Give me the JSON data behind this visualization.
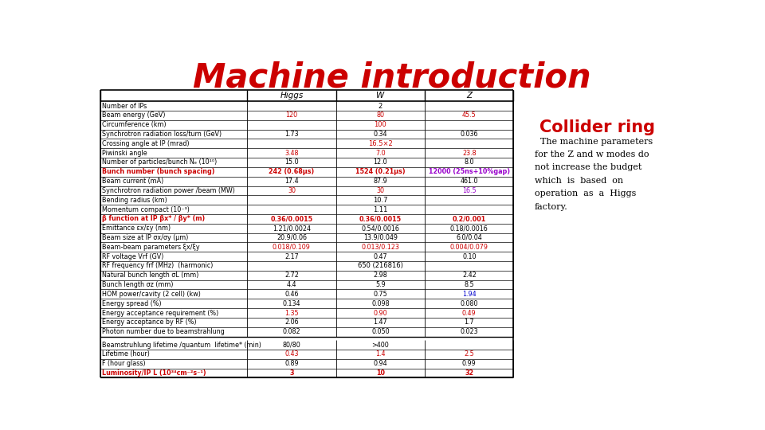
{
  "title": "Machine introduction",
  "title_color": "#cc0000",
  "collider_title": "Collider ring",
  "collider_color": "#cc0000",
  "collider_text": "  The machine parameters\nfor the Z and w modes do\nnot increase the budget\nwhich  is  based  on\noperation  as  a  Higgs\nfactory.",
  "headers": [
    "",
    "Higgs",
    "W",
    "Z"
  ],
  "rows": [
    {
      "label": "Number of IPs",
      "vals": [
        "2",
        "",
        ""
      ],
      "span": true,
      "bold": false,
      "lcolor": "black",
      "vcolors": [
        "black",
        "black",
        "black"
      ]
    },
    {
      "label": "Beam energy (GeV)",
      "vals": [
        "120",
        "80",
        "45.5"
      ],
      "span": false,
      "bold": false,
      "lcolor": "black",
      "vcolors": [
        "#cc0000",
        "#cc0000",
        "#cc0000"
      ]
    },
    {
      "label": "Circumference (km)",
      "vals": [
        "100",
        "",
        ""
      ],
      "span": true,
      "bold": false,
      "lcolor": "black",
      "vcolors": [
        "#cc0000",
        "#cc0000",
        "#cc0000"
      ]
    },
    {
      "label": "Synchrotron radiation loss/turn (GeV)",
      "vals": [
        "1.73",
        "0.34",
        "0.036"
      ],
      "span": false,
      "bold": false,
      "lcolor": "black",
      "vcolors": [
        "black",
        "black",
        "black"
      ]
    },
    {
      "label": "Crossing angle at IP (mrad)",
      "vals": [
        "16.5×2",
        "",
        ""
      ],
      "span": true,
      "bold": false,
      "lcolor": "black",
      "vcolors": [
        "#cc0000",
        "#cc0000",
        "#cc0000"
      ]
    },
    {
      "label": "Piwinski angle",
      "vals": [
        "3.48",
        "7.0",
        "23.8"
      ],
      "span": false,
      "bold": false,
      "lcolor": "black",
      "vcolors": [
        "#cc0000",
        "#cc0000",
        "#cc0000"
      ]
    },
    {
      "label": "Number of particles/bunch Nₑ (10¹⁰)",
      "vals": [
        "15.0",
        "12.0",
        "8.0"
      ],
      "span": false,
      "bold": false,
      "lcolor": "black",
      "vcolors": [
        "black",
        "black",
        "black"
      ]
    },
    {
      "label": "Bunch number (bunch spacing)",
      "vals": [
        "242 (0.68μs)",
        "1524 (0.21μs)",
        "12000 (25ns+10%gap)"
      ],
      "span": false,
      "bold": true,
      "lcolor": "#cc0000",
      "vcolors": [
        "#cc0000",
        "#cc0000",
        "#9900cc"
      ]
    },
    {
      "label": "Beam current (mA)",
      "vals": [
        "17.4",
        "87.9",
        "461.0"
      ],
      "span": false,
      "bold": false,
      "lcolor": "black",
      "vcolors": [
        "black",
        "black",
        "black"
      ]
    },
    {
      "label": "Synchrotron radiation power /beam (MW)",
      "vals": [
        "30",
        "30",
        "16.5"
      ],
      "span": false,
      "bold": false,
      "lcolor": "black",
      "vcolors": [
        "#cc0000",
        "#cc0000",
        "#9900cc"
      ]
    },
    {
      "label": "Bending radius (km)",
      "vals": [
        "10.7",
        "",
        ""
      ],
      "span": true,
      "bold": false,
      "lcolor": "black",
      "vcolors": [
        "black",
        "black",
        "black"
      ]
    },
    {
      "label": "Momentum compact (10⁻³)",
      "vals": [
        "1.11",
        "",
        ""
      ],
      "span": true,
      "bold": false,
      "lcolor": "black",
      "vcolors": [
        "black",
        "black",
        "black"
      ]
    },
    {
      "label": "β function at IP βx* / βy* (m)",
      "vals": [
        "0.36/0.0015",
        "0.36/0.0015",
        "0.2/0.001"
      ],
      "span": false,
      "bold": true,
      "lcolor": "#cc0000",
      "vcolors": [
        "#cc0000",
        "#cc0000",
        "#cc0000"
      ]
    },
    {
      "label": "Emittance εx/εy (nm)",
      "vals": [
        "1.21/0.0024",
        "0.54/0.0016",
        "0.18/0.0016"
      ],
      "span": false,
      "bold": false,
      "lcolor": "black",
      "vcolors": [
        "black",
        "black",
        "black"
      ]
    },
    {
      "label": "Beam size at IP σx/σy (μm)",
      "vals": [
        "20.9/0.06",
        "13.9/0.049",
        "6.0/0.04"
      ],
      "span": false,
      "bold": false,
      "lcolor": "black",
      "vcolors": [
        "black",
        "black",
        "black"
      ]
    },
    {
      "label": "Beam-beam parameters ξx/ξy",
      "vals": [
        "0.018/0.109",
        "0.013/0.123",
        "0.004/0.079"
      ],
      "span": false,
      "bold": false,
      "lcolor": "black",
      "vcolors": [
        "#cc0000",
        "#cc0000",
        "#cc0000"
      ]
    },
    {
      "label": "RF voltage Vrf (GV)",
      "vals": [
        "2.17",
        "0.47",
        "0.10"
      ],
      "span": false,
      "bold": false,
      "lcolor": "black",
      "vcolors": [
        "black",
        "black",
        "black"
      ]
    },
    {
      "label": "RF frequency frf (MHz)  (harmonic)",
      "vals": [
        "650 (216816)",
        "",
        ""
      ],
      "span": true,
      "bold": false,
      "lcolor": "black",
      "vcolors": [
        "black",
        "black",
        "black"
      ]
    },
    {
      "label": "Natural bunch length σL (mm)",
      "vals": [
        "2.72",
        "2.98",
        "2.42"
      ],
      "span": false,
      "bold": false,
      "lcolor": "black",
      "vcolors": [
        "black",
        "black",
        "black"
      ]
    },
    {
      "label": "Bunch length σz (mm)",
      "vals": [
        "4.4",
        "5.9",
        "8.5"
      ],
      "span": false,
      "bold": false,
      "lcolor": "black",
      "vcolors": [
        "black",
        "black",
        "black"
      ]
    },
    {
      "label": "HOM power/cavity (2 cell) (kw)",
      "vals": [
        "0.46",
        "0.75",
        "1.94"
      ],
      "span": false,
      "bold": false,
      "lcolor": "black",
      "vcolors": [
        "black",
        "black",
        "#0000cc"
      ]
    },
    {
      "label": "Energy spread (%)",
      "vals": [
        "0.134",
        "0.098",
        "0.080"
      ],
      "span": false,
      "bold": false,
      "lcolor": "black",
      "vcolors": [
        "black",
        "black",
        "black"
      ]
    },
    {
      "label": "Energy acceptance requirement (%)",
      "vals": [
        "1.35",
        "0.90",
        "0.49"
      ],
      "span": false,
      "bold": false,
      "lcolor": "black",
      "vcolors": [
        "#cc0000",
        "#cc0000",
        "#cc0000"
      ]
    },
    {
      "label": "Energy acceptance by RF (%)",
      "vals": [
        "2.06",
        "1.47",
        "1.7"
      ],
      "span": false,
      "bold": false,
      "lcolor": "black",
      "vcolors": [
        "black",
        "black",
        "black"
      ]
    },
    {
      "label": "Photon number due to beamstrahlung",
      "vals": [
        "0.082",
        "0.050",
        "0.023"
      ],
      "span": false,
      "bold": false,
      "lcolor": "black",
      "vcolors": [
        "black",
        "black",
        "black"
      ]
    },
    {
      "label": "Beamstruhlung lifetime /quantum  lifetime* (min)",
      "vals": [
        "80/80",
        ">400",
        ""
      ],
      "span": false,
      "bold": false,
      "lcolor": "black",
      "vcolors": [
        "black",
        "black",
        "black"
      ],
      "gap_before": true
    },
    {
      "label": "Lifetime (hour)",
      "vals": [
        "0.43",
        "1.4",
        "2.5"
      ],
      "span": false,
      "bold": false,
      "lcolor": "black",
      "vcolors": [
        "#cc0000",
        "#cc0000",
        "#cc0000"
      ]
    },
    {
      "label": "F (hour glass)",
      "vals": [
        "0.89",
        "0.94",
        "0.99"
      ],
      "span": false,
      "bold": false,
      "lcolor": "black",
      "vcolors": [
        "black",
        "black",
        "black"
      ]
    },
    {
      "label": "Luminosity/IP L (10³⁴cm⁻²s⁻¹)",
      "vals": [
        "3",
        "10",
        "32"
      ],
      "span": false,
      "bold": true,
      "lcolor": "#cc0000",
      "vcolors": [
        "#cc0000",
        "#cc0000",
        "#cc0000"
      ]
    }
  ]
}
